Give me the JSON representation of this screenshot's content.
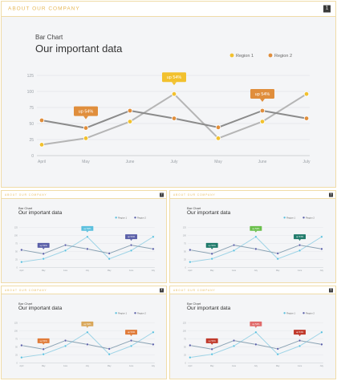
{
  "header": {
    "section_label": "ABOUT OUR COMPANY"
  },
  "chart_data": [
    {
      "page": "1",
      "type": "line",
      "subtitle": "Bar Chart",
      "title": "Our important data",
      "categories": [
        "April",
        "May",
        "June",
        "July",
        "May",
        "June",
        "July"
      ],
      "series": [
        {
          "name": "Region 1",
          "values": [
            17,
            27,
            53,
            96,
            27,
            53,
            96
          ]
        },
        {
          "name": "Region 2",
          "values": [
            55,
            43,
            70,
            58,
            44,
            70,
            58
          ]
        }
      ],
      "ylim": [
        0,
        125
      ],
      "yticks": [
        0,
        25,
        50,
        75,
        100,
        125
      ],
      "grid": true,
      "legend": "top-right",
      "callouts": [
        {
          "text": "up 54%",
          "series": 1,
          "index": 1
        },
        {
          "text": "up 54%",
          "series": 0,
          "index": 3
        },
        {
          "text": "up 54%",
          "series": 1,
          "index": 5
        }
      ],
      "colors": {
        "line1": "#b5b5b5",
        "line2": "#8b8b8b",
        "marker1": "#f2c12e",
        "marker2": "#e08e3c",
        "callout1": "#f2c12e",
        "callout2": "#e08e3c"
      }
    },
    {
      "page": "2",
      "type": "line",
      "subtitle": "Bar Chart",
      "title": "Our important data",
      "categories": [
        "April",
        "May",
        "June",
        "July",
        "May",
        "June",
        "July"
      ],
      "series": [
        {
          "name": "Region 1",
          "values": [
            17,
            27,
            53,
            96,
            27,
            53,
            96
          ]
        },
        {
          "name": "Region 2",
          "values": [
            55,
            43,
            70,
            58,
            44,
            70,
            58
          ]
        }
      ],
      "ylim": [
        0,
        125
      ],
      "yticks": [
        0,
        25,
        50,
        75,
        100,
        125
      ],
      "grid": true,
      "legend": "top-right",
      "callouts": [
        {
          "text": "up 54%",
          "series": 1,
          "index": 1
        },
        {
          "text": "up 54%",
          "series": 0,
          "index": 3
        },
        {
          "text": "up 54%",
          "series": 1,
          "index": 5
        }
      ],
      "colors": {
        "line1": "#9dd3e6",
        "line2": "#8aa2b3",
        "marker1": "#5bc0de",
        "marker2": "#5a5fa8",
        "callout1": "#5bc0de",
        "callout2": "#5a5fa8"
      }
    },
    {
      "page": "3",
      "type": "line",
      "subtitle": "Bar Chart",
      "title": "Our important data",
      "categories": [
        "April",
        "May",
        "June",
        "July",
        "May",
        "June",
        "July"
      ],
      "series": [
        {
          "name": "Region 1",
          "values": [
            17,
            27,
            53,
            96,
            27,
            53,
            96
          ]
        },
        {
          "name": "Region 2",
          "values": [
            55,
            43,
            70,
            58,
            44,
            70,
            58
          ]
        }
      ],
      "ylim": [
        0,
        125
      ],
      "yticks": [
        0,
        25,
        50,
        75,
        100,
        125
      ],
      "grid": true,
      "legend": "top-right",
      "callouts": [
        {
          "text": "up 54%",
          "series": 1,
          "index": 1
        },
        {
          "text": "up 54%",
          "series": 0,
          "index": 3
        },
        {
          "text": "up 54%",
          "series": 1,
          "index": 5
        }
      ],
      "colors": {
        "line1": "#9dd3e6",
        "line2": "#8aa2b3",
        "marker1": "#5bc0de",
        "marker2": "#5a5fa8",
        "callout1": "#6abf4b",
        "callout2": "#1f7a6a"
      }
    },
    {
      "page": "4",
      "type": "line",
      "subtitle": "Bar Chart",
      "title": "Our important data",
      "categories": [
        "April",
        "May",
        "June",
        "July",
        "May",
        "June",
        "July"
      ],
      "series": [
        {
          "name": "Region 1",
          "values": [
            17,
            27,
            53,
            96,
            27,
            53,
            96
          ]
        },
        {
          "name": "Region 2",
          "values": [
            55,
            43,
            70,
            58,
            44,
            70,
            58
          ]
        }
      ],
      "ylim": [
        0,
        125
      ],
      "yticks": [
        0,
        25,
        50,
        75,
        100,
        125
      ],
      "grid": true,
      "legend": "top-right",
      "callouts": [
        {
          "text": "up 54%",
          "series": 1,
          "index": 1
        },
        {
          "text": "up 54%",
          "series": 0,
          "index": 3
        },
        {
          "text": "up 54%",
          "series": 1,
          "index": 5
        }
      ],
      "colors": {
        "line1": "#9dd3e6",
        "line2": "#8aa2b3",
        "marker1": "#5bc0de",
        "marker2": "#5a5fa8",
        "callout1": "#d9a75a",
        "callout2": "#e07b39"
      }
    },
    {
      "page": "5",
      "type": "line",
      "subtitle": "Bar Chart",
      "title": "Our important data",
      "categories": [
        "April",
        "May",
        "June",
        "July",
        "May",
        "June",
        "July"
      ],
      "series": [
        {
          "name": "Region 1",
          "values": [
            17,
            27,
            53,
            96,
            27,
            53,
            96
          ]
        },
        {
          "name": "Region 2",
          "values": [
            55,
            43,
            70,
            58,
            44,
            70,
            58
          ]
        }
      ],
      "ylim": [
        0,
        125
      ],
      "yticks": [
        0,
        25,
        50,
        75,
        100,
        125
      ],
      "grid": true,
      "legend": "top-right",
      "callouts": [
        {
          "text": "up 54%",
          "series": 1,
          "index": 1
        },
        {
          "text": "up 54%",
          "series": 0,
          "index": 3
        },
        {
          "text": "up 54%",
          "series": 1,
          "index": 5
        }
      ],
      "colors": {
        "line1": "#9dd3e6",
        "line2": "#8aa2b3",
        "marker1": "#5bc0de",
        "marker2": "#5a5fa8",
        "callout1": "#e06a6a",
        "callout2": "#c0392b"
      }
    }
  ]
}
